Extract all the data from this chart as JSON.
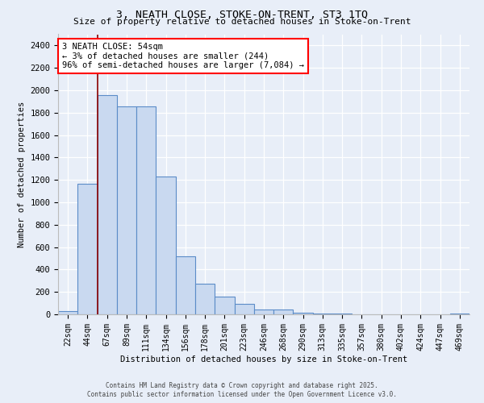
{
  "title": "3, NEATH CLOSE, STOKE-ON-TRENT, ST3 1TQ",
  "subtitle": "Size of property relative to detached houses in Stoke-on-Trent",
  "xlabel": "Distribution of detached houses by size in Stoke-on-Trent",
  "ylabel": "Number of detached properties",
  "bins": [
    "22sqm",
    "44sqm",
    "67sqm",
    "89sqm",
    "111sqm",
    "134sqm",
    "156sqm",
    "178sqm",
    "201sqm",
    "223sqm",
    "246sqm",
    "268sqm",
    "290sqm",
    "313sqm",
    "335sqm",
    "357sqm",
    "380sqm",
    "402sqm",
    "424sqm",
    "447sqm",
    "469sqm"
  ],
  "values": [
    30,
    1165,
    1960,
    1855,
    1855,
    1230,
    520,
    275,
    155,
    95,
    45,
    45,
    15,
    10,
    5,
    2,
    2,
    1,
    1,
    1,
    10
  ],
  "bar_color": "#c9d9f0",
  "bar_edge_color": "#5b8cc8",
  "red_line_x": 1.5,
  "annotation_text": "3 NEATH CLOSE: 54sqm\n← 3% of detached houses are smaller (244)\n96% of semi-detached houses are larger (7,084) →",
  "footer_line1": "Contains HM Land Registry data © Crown copyright and database right 2025.",
  "footer_line2": "Contains public sector information licensed under the Open Government Licence v3.0.",
  "bg_color": "#e8eef8",
  "ylim_max": 2500,
  "yticks": [
    0,
    200,
    400,
    600,
    800,
    1000,
    1200,
    1400,
    1600,
    1800,
    2000,
    2200,
    2400
  ]
}
